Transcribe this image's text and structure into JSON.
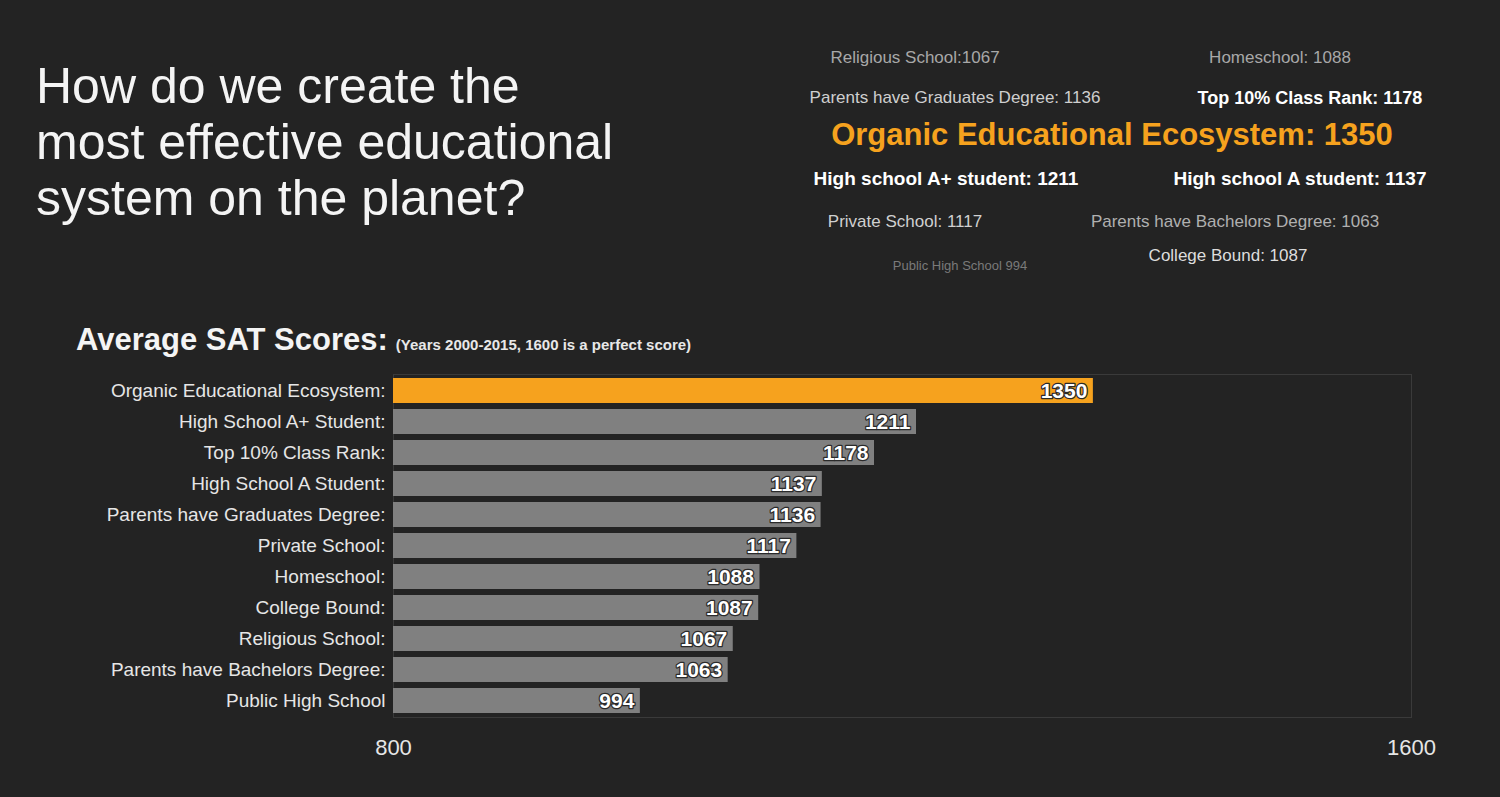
{
  "heading": [
    "How do we create the",
    "most effective educational",
    "system on the planet?"
  ],
  "chart_data": {
    "type": "bar",
    "orientation": "horizontal",
    "title": "Average SAT Scores:",
    "subtitle": "(Years 2000-2015, 1600 is a perfect score)",
    "annotations": [
      "Religious School:1067",
      "Homeschool: 1088",
      "Parents have Graduates Degree: 1136",
      "Top 10% Class Rank: 1178",
      "Organic Educational Ecosystem: 1350",
      "High school A+ student: 1211",
      "High school A student: 1137",
      "Private School: 1117",
      "Parents have Bachelors Degree: 1063",
      "Public High School 994",
      "College Bound: 1087"
    ],
    "categories": [
      "Organic Educational Ecosystem:",
      "High School A+ Student:",
      "Top 10% Class Rank:",
      "High School A Student:",
      "Parents have Graduates Degree:",
      "Private School:",
      "Homeschool:",
      "College Bound:",
      "Religious School:",
      "Parents have Bachelors Degree:",
      "Public High School"
    ],
    "values": [
      1350,
      1211,
      1178,
      1137,
      1136,
      1117,
      1088,
      1087,
      1067,
      1063,
      994
    ],
    "colors": [
      "#f6a21e",
      "#808080",
      "#808080",
      "#808080",
      "#808080",
      "#808080",
      "#808080",
      "#808080",
      "#808080",
      "#808080",
      "#808080"
    ],
    "xlim": [
      800,
      1600
    ],
    "xticks": [
      800,
      1600
    ],
    "grid": false,
    "data_labels": true
  }
}
